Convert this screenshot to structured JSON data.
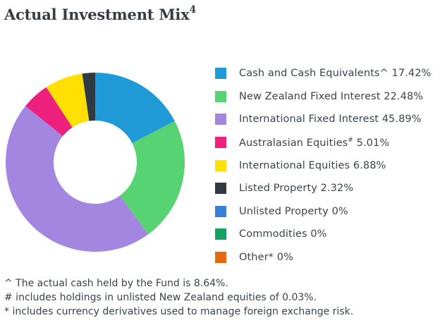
{
  "title": {
    "text": "Actual Investment Mix",
    "sup": "4"
  },
  "legend": [
    {
      "label": "Cash and Cash Equivalents",
      "mark": "^",
      "value": "17.42%",
      "color": "#1f9ad6"
    },
    {
      "label": "New Zealand Fixed Interest",
      "mark": "",
      "value": "22.48%",
      "color": "#57d373"
    },
    {
      "label": "International Fixed Interest",
      "mark": "",
      "value": "45.89%",
      "color": "#a386e0"
    },
    {
      "label": "Australasian Equities",
      "mark": "#",
      "value": "5.01%",
      "color": "#ee207e"
    },
    {
      "label": "International Equities",
      "mark": "",
      "value": "6.88%",
      "color": "#ffe000"
    },
    {
      "label": "Listed Property",
      "mark": "",
      "value": "2.32%",
      "color": "#2f3a42"
    },
    {
      "label": "Unlisted Property",
      "mark": "",
      "value": "0%",
      "color": "#3a7fd6"
    },
    {
      "label": "Commodities",
      "mark": "",
      "value": "0%",
      "color": "#16a062"
    },
    {
      "label": "Other",
      "mark": "*",
      "value": "0%",
      "color": "#e46a12"
    }
  ],
  "notes": [
    "^ The actual cash held by the Fund is 8.64%.",
    "# includes holdings in unlisted New Zealand equities of 0.03%.",
    "* includes currency derivatives used to manage foreign exchange risk."
  ],
  "chart_data": {
    "type": "pie",
    "variant": "donut",
    "title": "Actual Investment Mix",
    "categories": [
      "Cash and Cash Equivalents",
      "New Zealand Fixed Interest",
      "International Fixed Interest",
      "Australasian Equities",
      "International Equities",
      "Listed Property",
      "Unlisted Property",
      "Commodities",
      "Other"
    ],
    "values": [
      17.42,
      22.48,
      45.89,
      5.01,
      6.88,
      2.32,
      0,
      0,
      0
    ],
    "colors": [
      "#1f9ad6",
      "#57d373",
      "#a386e0",
      "#ee207e",
      "#ffe000",
      "#2f3a42",
      "#3a7fd6",
      "#16a062",
      "#e46a12"
    ],
    "start_angle": "12 o'clock, clockwise",
    "legend_position": "right"
  }
}
